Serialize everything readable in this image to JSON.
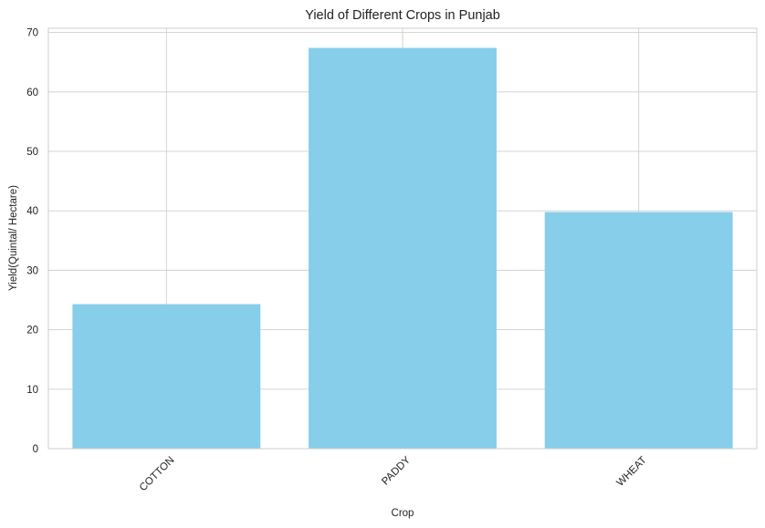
{
  "chart_data": {
    "type": "bar",
    "title": "Yield of Different Crops in Punjab",
    "xlabel": "Crop",
    "ylabel": "Yield(Quintal/ Hectare)",
    "categories": [
      "COTTON",
      "PADDY",
      "WHEAT"
    ],
    "values": [
      24.3,
      67.4,
      39.8
    ],
    "ylim": [
      0,
      70.7
    ],
    "yticks": [
      0,
      10,
      20,
      30,
      40,
      50,
      60,
      70
    ],
    "grid": true,
    "bar_color": "#87ceeb"
  }
}
